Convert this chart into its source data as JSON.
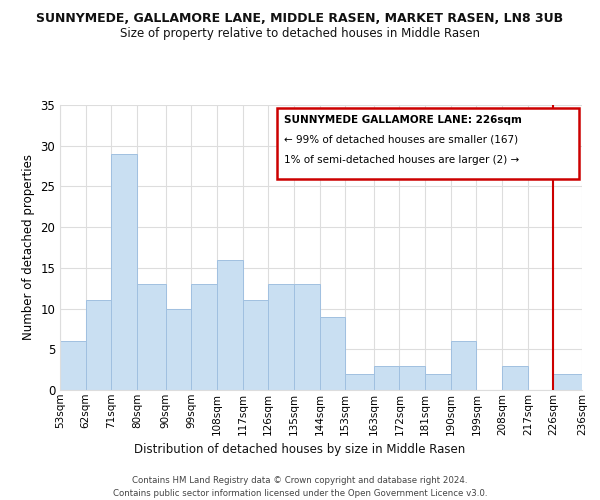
{
  "title": "SUNNYMEDE, GALLAMORE LANE, MIDDLE RASEN, MARKET RASEN, LN8 3UB",
  "subtitle": "Size of property relative to detached houses in Middle Rasen",
  "xlabel": "Distribution of detached houses by size in Middle Rasen",
  "ylabel": "Number of detached properties",
  "bin_labels": [
    "53sqm",
    "62sqm",
    "71sqm",
    "80sqm",
    "90sqm",
    "99sqm",
    "108sqm",
    "117sqm",
    "126sqm",
    "135sqm",
    "144sqm",
    "153sqm",
    "163sqm",
    "172sqm",
    "181sqm",
    "190sqm",
    "199sqm",
    "208sqm",
    "217sqm",
    "226sqm",
    "236sqm"
  ],
  "bin_edges": [
    53,
    62,
    71,
    80,
    90,
    99,
    108,
    117,
    126,
    135,
    144,
    153,
    163,
    172,
    181,
    190,
    199,
    208,
    217,
    226,
    236
  ],
  "bar_heights": [
    6,
    11,
    29,
    13,
    10,
    13,
    16,
    11,
    13,
    13,
    9,
    2,
    3,
    3,
    2,
    6,
    0,
    3,
    0,
    2
  ],
  "bar_color": "#c9dff2",
  "bar_edge_color": "#a0c0e0",
  "marker_value": 226,
  "marker_color": "#cc0000",
  "ylim": [
    0,
    35
  ],
  "yticks": [
    0,
    5,
    10,
    15,
    20,
    25,
    30,
    35
  ],
  "annotation_title": "SUNNYMEDE GALLAMORE LANE: 226sqm",
  "annotation_line1": "← 99% of detached houses are smaller (167)",
  "annotation_line2": "1% of semi-detached houses are larger (2) →",
  "footer1": "Contains HM Land Registry data © Crown copyright and database right 2024.",
  "footer2": "Contains public sector information licensed under the Open Government Licence v3.0.",
  "bg_color": "#ffffff",
  "grid_color": "#dddddd"
}
